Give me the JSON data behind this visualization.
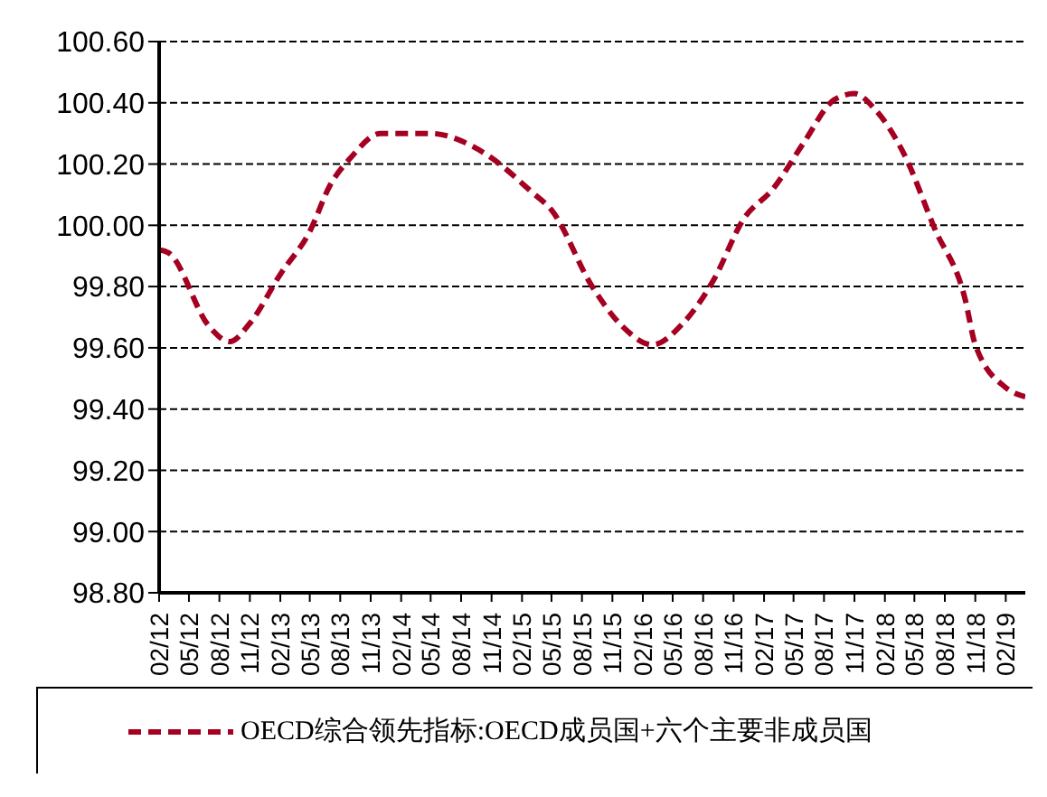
{
  "chart_data": {
    "type": "line",
    "x": [
      "2012-02",
      "2012-03",
      "2012-07",
      "2012-09",
      "2012-11",
      "2013-02",
      "2013-05",
      "2013-07",
      "2013-09",
      "2013-12",
      "2014-05",
      "2014-09",
      "2014-11",
      "2015-03",
      "2015-05",
      "2015-09",
      "2015-12",
      "2016-03",
      "2016-06",
      "2016-09",
      "2016-12",
      "2017-03",
      "2017-06",
      "2017-09",
      "2017-11",
      "2018-01",
      "2018-04",
      "2018-07",
      "2018-10",
      "2018-11",
      "2019-02",
      "2019-04"
    ],
    "series": [
      {
        "name": "OECD综合领先指标:OECD成员国+六个主要非成员国",
        "color": "#a50021",
        "line_style": "dashed",
        "values": [
          99.92,
          99.91,
          99.67,
          99.62,
          99.68,
          99.84,
          99.98,
          100.13,
          100.22,
          100.3,
          100.3,
          100.26,
          100.22,
          100.11,
          100.05,
          99.8,
          99.67,
          99.61,
          99.68,
          99.82,
          100.02,
          100.12,
          100.27,
          100.41,
          100.43,
          100.38,
          100.23,
          99.99,
          99.76,
          99.61,
          99.47,
          99.44
        ]
      }
    ],
    "xlim": [
      "2012-02",
      "2019-04"
    ],
    "xticks": [
      {
        "value": "2012-02",
        "label": "02/12"
      },
      {
        "value": "2012-05",
        "label": "05/12"
      },
      {
        "value": "2012-08",
        "label": "08/12"
      },
      {
        "value": "2012-11",
        "label": "11/12"
      },
      {
        "value": "2013-02",
        "label": "02/13"
      },
      {
        "value": "2013-05",
        "label": "05/13"
      },
      {
        "value": "2013-08",
        "label": "08/13"
      },
      {
        "value": "2013-11",
        "label": "11/13"
      },
      {
        "value": "2014-02",
        "label": "02/14"
      },
      {
        "value": "2014-05",
        "label": "05/14"
      },
      {
        "value": "2014-08",
        "label": "08/14"
      },
      {
        "value": "2014-11",
        "label": "11/14"
      },
      {
        "value": "2015-02",
        "label": "02/15"
      },
      {
        "value": "2015-05",
        "label": "05/15"
      },
      {
        "value": "2015-08",
        "label": "08/15"
      },
      {
        "value": "2015-11",
        "label": "11/15"
      },
      {
        "value": "2016-02",
        "label": "02/16"
      },
      {
        "value": "2016-05",
        "label": "05/16"
      },
      {
        "value": "2016-08",
        "label": "08/16"
      },
      {
        "value": "2016-11",
        "label": "11/16"
      },
      {
        "value": "2017-02",
        "label": "02/17"
      },
      {
        "value": "2017-05",
        "label": "05/17"
      },
      {
        "value": "2017-08",
        "label": "08/17"
      },
      {
        "value": "2017-11",
        "label": "11/17"
      },
      {
        "value": "2018-02",
        "label": "02/18"
      },
      {
        "value": "2018-05",
        "label": "05/18"
      },
      {
        "value": "2018-08",
        "label": "08/18"
      },
      {
        "value": "2018-11",
        "label": "11/18"
      },
      {
        "value": "2019-02",
        "label": "02/19"
      }
    ],
    "ylim": [
      98.8,
      100.6
    ],
    "yticks": [
      {
        "value": 98.8,
        "label": "98.80"
      },
      {
        "value": 99,
        "label": "99.00"
      },
      {
        "value": 99.2,
        "label": "99.20"
      },
      {
        "value": 99.4,
        "label": "99.40"
      },
      {
        "value": 99.6,
        "label": "99.60"
      },
      {
        "value": 99.8,
        "label": "99.80"
      },
      {
        "value": 100,
        "label": "100.00"
      },
      {
        "value": 100.2,
        "label": "100.20"
      },
      {
        "value": 100.4,
        "label": "100.40"
      },
      {
        "value": 100.6,
        "label": "100.60"
      }
    ],
    "grid": "y",
    "legend": "bottom"
  }
}
